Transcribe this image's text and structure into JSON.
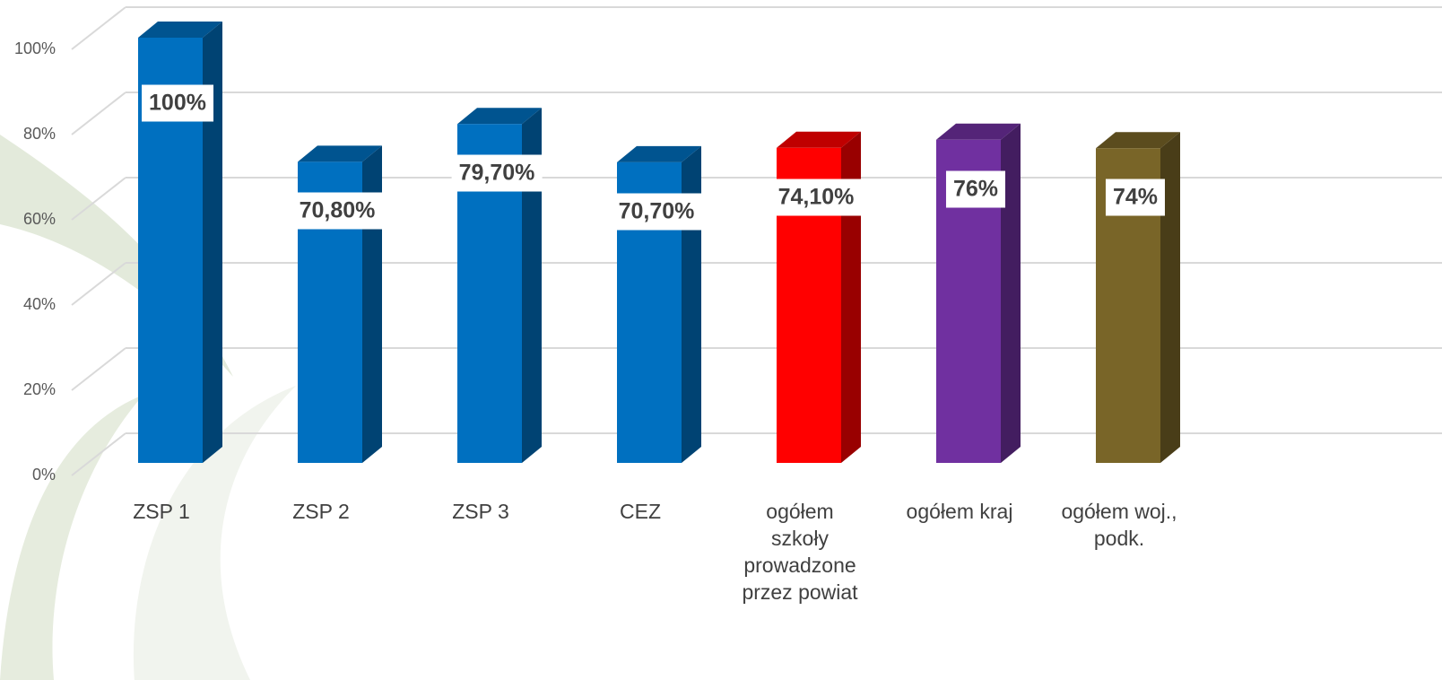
{
  "chart_data": {
    "type": "bar3d",
    "categories": [
      "ZSP 1",
      "ZSP 2",
      "ZSP 3",
      "CEZ",
      "ogółem szkoły prowadzone przez powiat",
      "ogółem kraj",
      "ogółem woj., podk."
    ],
    "values": [
      100,
      70.8,
      79.7,
      70.7,
      74.1,
      76,
      74
    ],
    "value_labels": [
      "100%",
      "70,80%",
      "79,70%",
      "70,70%",
      "74,10%",
      "76%",
      "74%"
    ],
    "colors": [
      "#0070c0",
      "#0070c0",
      "#0070c0",
      "#0070c0",
      "#ff0000",
      "#7030a0",
      "#796528"
    ],
    "ylim": [
      0,
      100
    ],
    "yticks": [
      {
        "value": 0,
        "label": "0%"
      },
      {
        "value": 20,
        "label": "20%"
      },
      {
        "value": 40,
        "label": "40%"
      },
      {
        "value": 60,
        "label": "60%"
      },
      {
        "value": 80,
        "label": "80%"
      },
      {
        "value": 100,
        "label": "100%"
      }
    ],
    "grid": true
  }
}
